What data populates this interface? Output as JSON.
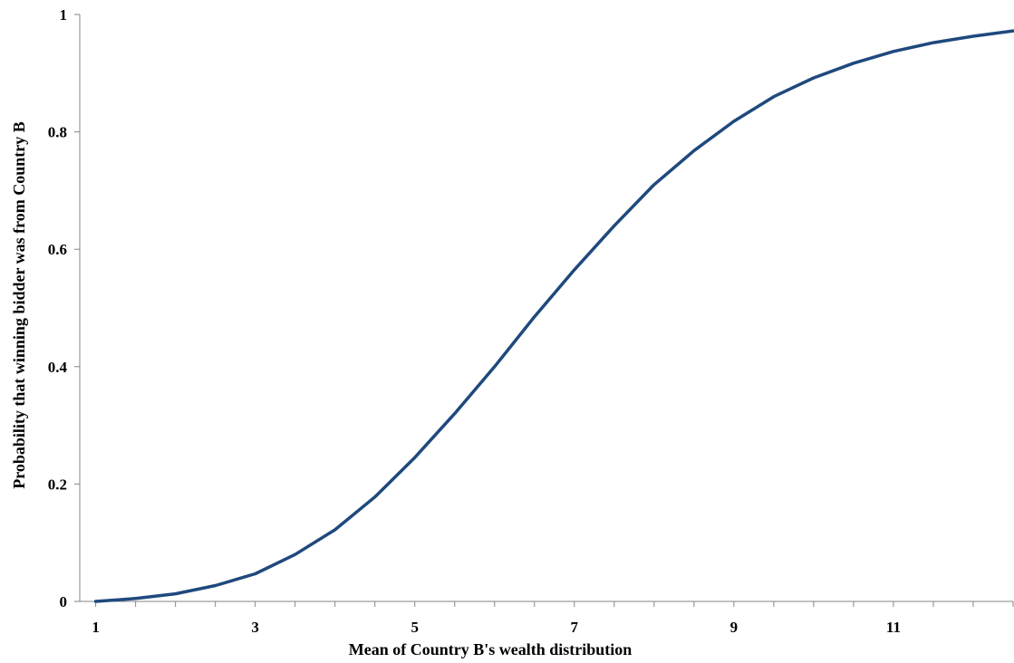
{
  "chart_data": {
    "type": "line",
    "title": "",
    "xlabel": "Mean of Country B's wealth distribution",
    "ylabel": "Probability that winning bidder was from Country B",
    "xlim": [
      0.8,
      12.5
    ],
    "ylim": [
      0,
      1
    ],
    "x_ticks": [
      "1",
      "3",
      "5",
      "7",
      "9",
      "11"
    ],
    "y_ticks": [
      "0",
      "0.2",
      "0.4",
      "0.6",
      "0.8",
      "1"
    ],
    "grid": false,
    "legend": "none",
    "series": [
      {
        "color": "#1F497D",
        "x": [
          1,
          1.5,
          2,
          2.5,
          3,
          3.5,
          4,
          4.5,
          5,
          5.5,
          6,
          6.5,
          7,
          7.5,
          8,
          8.5,
          9,
          9.5,
          10,
          10.5,
          11,
          11.5,
          12,
          12.5
        ],
        "y": [
          0,
          0.005,
          0.013,
          0.027,
          0.047,
          0.08,
          0.122,
          0.178,
          0.245,
          0.32,
          0.4,
          0.485,
          0.565,
          0.64,
          0.71,
          0.768,
          0.818,
          0.86,
          0.892,
          0.917,
          0.937,
          0.952,
          0.963,
          0.972
        ]
      }
    ]
  }
}
